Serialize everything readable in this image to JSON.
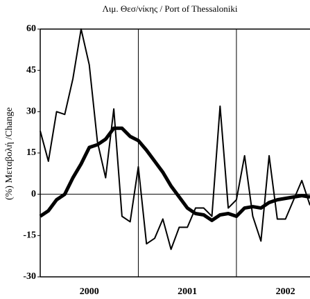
{
  "chart_data": {
    "type": "line",
    "title": "Λιμ. Θεσ/νίκης / Port of Thessaloniki",
    "y_label": "(%) Μεταβολή /Change",
    "x": [
      2000,
      2000.0833,
      2000.1667,
      2000.25,
      2000.3333,
      2000.4167,
      2000.5,
      2000.5833,
      2000.6667,
      2000.75,
      2000.8333,
      2000.9167,
      2001,
      2001.0833,
      2001.1667,
      2001.25,
      2001.3333,
      2001.4167,
      2001.5,
      2001.5833,
      2001.6667,
      2001.75,
      2001.8333,
      2001.9167,
      2002,
      2002.0833,
      2002.1667,
      2002.25,
      2002.3333,
      2002.4167,
      2002.5,
      2002.5833,
      2002.6667,
      2002.75
    ],
    "series": [
      {
        "color": "#000000",
        "width": 2,
        "values": [
          23,
          12,
          30,
          29,
          42,
          60,
          47,
          19,
          6,
          31,
          -8,
          -10,
          10,
          -18,
          -16,
          -9,
          -20,
          -12,
          -12,
          -5,
          -5,
          -8,
          32,
          -5,
          -2,
          14,
          -8,
          -17,
          14,
          -9,
          -9,
          -2,
          5,
          -4
        ]
      },
      {
        "color": "#000000",
        "width": 5,
        "values": [
          -8,
          -6,
          -2,
          0,
          6,
          11,
          17,
          18,
          20,
          24,
          24,
          21,
          19.5,
          16,
          12,
          8,
          3,
          -1,
          -5,
          -7,
          -7.5,
          -9.5,
          -7.5,
          -7,
          -8,
          -5,
          -4.5,
          -5,
          -3,
          -2,
          -1.5,
          -1,
          -0.5,
          -1
        ]
      }
    ],
    "xlim": [
      2000,
      2002.75
    ],
    "xticks": [
      {
        "value": 2000.5,
        "label": "2000"
      },
      {
        "value": 2001.5,
        "label": "2001"
      },
      {
        "value": 2002.5,
        "label": "2002"
      }
    ],
    "vlines": [
      2001,
      2002
    ],
    "zero_line": true,
    "ylim": [
      -30,
      60
    ],
    "yticks": [
      60,
      45,
      30,
      15,
      0,
      -15,
      -30
    ]
  }
}
